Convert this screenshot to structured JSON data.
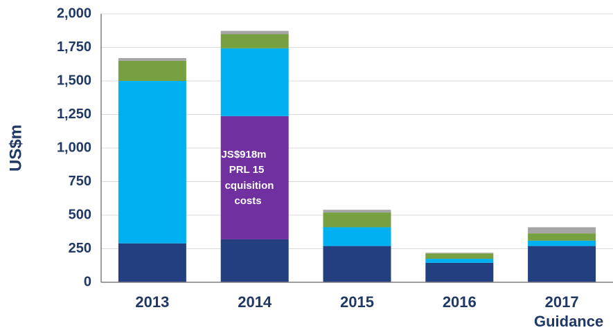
{
  "chart_data": {
    "type": "stacked_bar",
    "y_label": "US$m",
    "categories": [
      "2013",
      "2014",
      "2015",
      "2016",
      "2017 Guidance"
    ],
    "series": [
      {
        "color": "#243f7f",
        "values": [
          290,
          320,
          270,
          145,
          270
        ]
      },
      {
        "color": "#7030a0",
        "values": [
          null,
          918,
          null,
          null,
          null
        ]
      },
      {
        "color": "#00b0f0",
        "values": [
          1210,
          505,
          140,
          30,
          40
        ]
      },
      {
        "color": "#77a041",
        "values": [
          150,
          105,
          110,
          40,
          55
        ]
      },
      {
        "color": "#a5a5a5",
        "values": [
          20,
          25,
          20,
          5,
          45
        ]
      }
    ],
    "annotation": [
      "JS$918m",
      "PRL 15",
      "cquisition",
      "costs"
    ],
    "ylim": [
      0,
      2000
    ],
    "yticks": [
      0,
      250,
      500,
      750,
      {
        "value": 1000,
        "label": "1,000"
      },
      {
        "value": 1250,
        "label": "1,250"
      },
      {
        "value": 1500,
        "label": "1,500"
      },
      {
        "value": 1750,
        "label": "1,750"
      },
      {
        "value": 2000,
        "label": "2,000"
      }
    ],
    "grid": true
  }
}
